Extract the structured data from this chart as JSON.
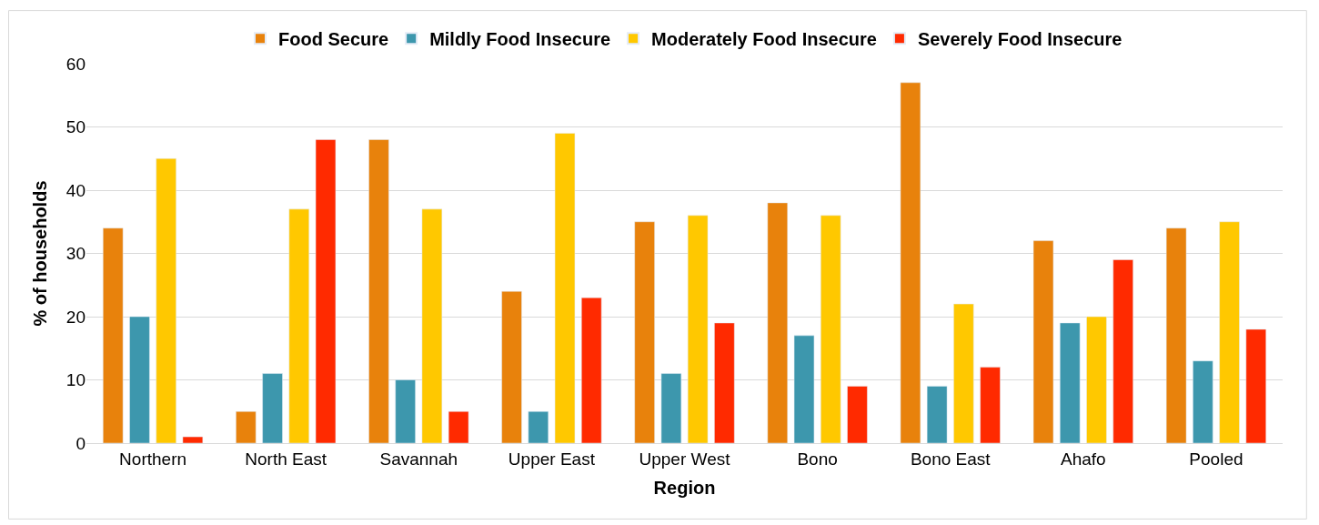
{
  "chart_data": {
    "type": "bar",
    "xlabel": "Region",
    "ylabel": "% of households",
    "categories": [
      "Northern",
      "North East",
      "Savannah",
      "Upper East",
      "Upper West",
      "Bono",
      "Bono East",
      "Ahafo",
      "Pooled"
    ],
    "series": [
      {
        "name": "Food Secure",
        "color": "#e8820c",
        "values": [
          34,
          5,
          48,
          24,
          35,
          38,
          57,
          32,
          34
        ]
      },
      {
        "name": "Mildly Food Insecure",
        "color": "#3d97ad",
        "values": [
          20,
          11,
          10,
          5,
          11,
          17,
          9,
          19,
          13
        ]
      },
      {
        "name": "Moderately Food Insecure",
        "color": "#ffc800",
        "values": [
          45,
          37,
          37,
          49,
          36,
          36,
          22,
          20,
          35
        ]
      },
      {
        "name": "Severely Food Insecure",
        "color": "#ff2a00",
        "values": [
          1,
          48,
          5,
          23,
          19,
          9,
          12,
          29,
          18
        ]
      }
    ],
    "ylim": [
      0,
      60
    ],
    "yticks": [
      0,
      10,
      20,
      30,
      40,
      50,
      60
    ],
    "grid": "y",
    "legend": "top"
  }
}
